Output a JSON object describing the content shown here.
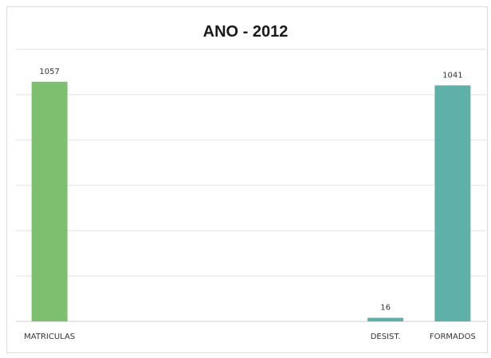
{
  "chart_data": {
    "type": "bar",
    "title": "ANO - 2012",
    "categories": [
      "MATRICULAS",
      "",
      "",
      "",
      "",
      "DESIST.",
      "FORMADOS"
    ],
    "values": [
      1057,
      null,
      null,
      null,
      null,
      16,
      1041
    ],
    "data_labels": [
      "1057",
      "",
      "",
      "",
      "",
      "16",
      "1041"
    ],
    "colors": [
      "#7dbf6e",
      null,
      null,
      null,
      null,
      "#5fb0a8",
      "#5fb0a8"
    ],
    "ylim": [
      0,
      1200
    ],
    "grid": true,
    "legend": "none",
    "xlabel": "",
    "ylabel": ""
  }
}
